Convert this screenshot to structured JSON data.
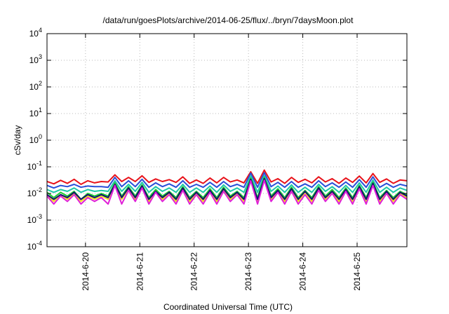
{
  "chart_data": {
    "type": "line",
    "title": "/data/run/goesPlots/archive/2014-06-25/flux/../bryn/7daysMoon.plot",
    "xlabel": "Coordinated Universal Time (UTC)",
    "ylabel": "cSv/day",
    "yscale": "log",
    "ylim": [
      0.0001,
      10000
    ],
    "y_ticks": [
      {
        "value": 0.0001,
        "base": "10",
        "exp": "-4"
      },
      {
        "value": 0.001,
        "base": "10",
        "exp": "-3"
      },
      {
        "value": 0.01,
        "base": "10",
        "exp": "-2"
      },
      {
        "value": 0.1,
        "base": "10",
        "exp": "-1"
      },
      {
        "value": 1,
        "base": "10",
        "exp": "0"
      },
      {
        "value": 10,
        "base": "10",
        "exp": "1"
      },
      {
        "value": 100,
        "base": "10",
        "exp": "2"
      },
      {
        "value": 1000,
        "base": "10",
        "exp": "3"
      },
      {
        "value": 10000,
        "base": "10",
        "exp": "4"
      }
    ],
    "xlim": [
      "2014-06-19T07:00",
      "2014-06-25T22:00"
    ],
    "x_ticks": [
      {
        "value": "2014-06-20T00:00",
        "label": "2014-6-20"
      },
      {
        "value": "2014-06-21T00:00",
        "label": "2014-6-21"
      },
      {
        "value": "2014-06-22T00:00",
        "label": "2014-6-22"
      },
      {
        "value": "2014-06-23T00:00",
        "label": "2014-6-23"
      },
      {
        "value": "2014-06-24T00:00",
        "label": "2014-6-24"
      },
      {
        "value": "2014-06-25T00:00",
        "label": "2014-6-25"
      }
    ],
    "grid": true,
    "legend": "none",
    "x": [
      "2014-06-19T07:00",
      "2014-06-19T10:00",
      "2014-06-19T13:00",
      "2014-06-19T16:00",
      "2014-06-19T19:00",
      "2014-06-19T22:00",
      "2014-06-20T01:00",
      "2014-06-20T04:00",
      "2014-06-20T07:00",
      "2014-06-20T10:00",
      "2014-06-20T13:00",
      "2014-06-20T16:00",
      "2014-06-20T19:00",
      "2014-06-20T22:00",
      "2014-06-21T01:00",
      "2014-06-21T04:00",
      "2014-06-21T07:00",
      "2014-06-21T10:00",
      "2014-06-21T13:00",
      "2014-06-21T16:00",
      "2014-06-21T19:00",
      "2014-06-21T22:00",
      "2014-06-22T01:00",
      "2014-06-22T04:00",
      "2014-06-22T07:00",
      "2014-06-22T10:00",
      "2014-06-22T13:00",
      "2014-06-22T16:00",
      "2014-06-22T19:00",
      "2014-06-22T22:00",
      "2014-06-23T01:00",
      "2014-06-23T04:00",
      "2014-06-23T07:00",
      "2014-06-23T10:00",
      "2014-06-23T13:00",
      "2014-06-23T16:00",
      "2014-06-23T19:00",
      "2014-06-23T22:00",
      "2014-06-24T01:00",
      "2014-06-24T04:00",
      "2014-06-24T07:00",
      "2014-06-24T10:00",
      "2014-06-24T13:00",
      "2014-06-24T16:00",
      "2014-06-24T19:00",
      "2014-06-24T22:00",
      "2014-06-25T01:00",
      "2014-06-25T04:00",
      "2014-06-25T07:00",
      "2014-06-25T10:00",
      "2014-06-25T13:00",
      "2014-06-25T16:00",
      "2014-06-25T19:00",
      "2014-06-25T22:00"
    ],
    "series": [
      {
        "color": "#e8121a",
        "values": [
          0.028,
          0.023,
          0.031,
          0.024,
          0.034,
          0.022,
          0.03,
          0.025,
          0.028,
          0.027,
          0.05,
          0.028,
          0.04,
          0.028,
          0.046,
          0.026,
          0.035,
          0.028,
          0.033,
          0.026,
          0.042,
          0.024,
          0.032,
          0.024,
          0.038,
          0.025,
          0.04,
          0.027,
          0.032,
          0.025,
          0.065,
          0.024,
          0.075,
          0.027,
          0.036,
          0.024,
          0.04,
          0.026,
          0.034,
          0.025,
          0.042,
          0.027,
          0.036,
          0.024,
          0.038,
          0.026,
          0.045,
          0.025,
          0.056,
          0.026,
          0.035,
          0.024,
          0.032,
          0.03
        ]
      },
      {
        "color": "#2a4fd8",
        "values": [
          0.02,
          0.016,
          0.02,
          0.018,
          0.022,
          0.017,
          0.019,
          0.018,
          0.018,
          0.017,
          0.04,
          0.018,
          0.03,
          0.018,
          0.034,
          0.017,
          0.025,
          0.018,
          0.023,
          0.017,
          0.03,
          0.017,
          0.022,
          0.017,
          0.026,
          0.017,
          0.028,
          0.018,
          0.022,
          0.017,
          0.058,
          0.017,
          0.06,
          0.018,
          0.026,
          0.017,
          0.028,
          0.017,
          0.023,
          0.017,
          0.03,
          0.018,
          0.025,
          0.017,
          0.027,
          0.017,
          0.033,
          0.017,
          0.042,
          0.017,
          0.024,
          0.017,
          0.022,
          0.019
        ]
      },
      {
        "color": "#1fc8a8",
        "values": [
          0.014,
          0.011,
          0.014,
          0.012,
          0.016,
          0.011,
          0.014,
          0.012,
          0.013,
          0.012,
          0.03,
          0.012,
          0.022,
          0.012,
          0.026,
          0.011,
          0.018,
          0.012,
          0.016,
          0.011,
          0.022,
          0.011,
          0.016,
          0.011,
          0.019,
          0.011,
          0.021,
          0.012,
          0.016,
          0.011,
          0.045,
          0.011,
          0.046,
          0.012,
          0.019,
          0.011,
          0.021,
          0.011,
          0.017,
          0.011,
          0.022,
          0.012,
          0.018,
          0.011,
          0.02,
          0.011,
          0.025,
          0.011,
          0.032,
          0.011,
          0.017,
          0.011,
          0.016,
          0.013
        ]
      },
      {
        "color": "#22cc33",
        "values": [
          0.011,
          0.007,
          0.011,
          0.008,
          0.012,
          0.006,
          0.01,
          0.008,
          0.01,
          0.008,
          0.025,
          0.008,
          0.018,
          0.008,
          0.021,
          0.007,
          0.014,
          0.008,
          0.012,
          0.007,
          0.018,
          0.007,
          0.012,
          0.007,
          0.015,
          0.007,
          0.017,
          0.008,
          0.012,
          0.007,
          0.038,
          0.007,
          0.04,
          0.008,
          0.015,
          0.007,
          0.017,
          0.007,
          0.013,
          0.007,
          0.018,
          0.008,
          0.014,
          0.007,
          0.016,
          0.007,
          0.02,
          0.007,
          0.026,
          0.007,
          0.013,
          0.007,
          0.012,
          0.009
        ]
      },
      {
        "color": "#f0e020",
        "values": [
          0.009,
          0.005,
          0.009,
          0.006,
          0.01,
          0.005,
          0.008,
          0.006,
          0.008,
          0.006,
          0.022,
          0.006,
          0.015,
          0.006,
          0.018,
          0.005,
          0.012,
          0.006,
          0.01,
          0.005,
          0.015,
          0.005,
          0.01,
          0.005,
          0.012,
          0.005,
          0.014,
          0.006,
          0.01,
          0.005,
          0.032,
          0.005,
          0.034,
          0.006,
          0.012,
          0.005,
          0.014,
          0.005,
          0.011,
          0.005,
          0.015,
          0.006,
          0.012,
          0.005,
          0.013,
          0.005,
          0.017,
          0.005,
          0.022,
          0.005,
          0.011,
          0.005,
          0.01,
          0.007
        ]
      },
      {
        "color": "#101070",
        "values": [
          0.009,
          0.006,
          0.009,
          0.007,
          0.011,
          0.006,
          0.009,
          0.007,
          0.009,
          0.007,
          0.022,
          0.007,
          0.016,
          0.007,
          0.019,
          0.006,
          0.012,
          0.007,
          0.011,
          0.006,
          0.016,
          0.006,
          0.011,
          0.006,
          0.013,
          0.006,
          0.015,
          0.007,
          0.011,
          0.006,
          0.034,
          0.006,
          0.036,
          0.007,
          0.013,
          0.006,
          0.015,
          0.006,
          0.012,
          0.006,
          0.016,
          0.007,
          0.012,
          0.006,
          0.014,
          0.006,
          0.018,
          0.006,
          0.024,
          0.006,
          0.012,
          0.006,
          0.011,
          0.008
        ]
      },
      {
        "color": "#e020d8",
        "values": [
          0.008,
          0.004,
          0.008,
          0.005,
          0.009,
          0.004,
          0.007,
          0.005,
          0.007,
          0.004,
          0.02,
          0.004,
          0.013,
          0.005,
          0.016,
          0.004,
          0.011,
          0.005,
          0.009,
          0.004,
          0.013,
          0.004,
          0.009,
          0.004,
          0.011,
          0.004,
          0.012,
          0.005,
          0.009,
          0.004,
          0.03,
          0.004,
          0.031,
          0.005,
          0.011,
          0.004,
          0.012,
          0.004,
          0.009,
          0.004,
          0.013,
          0.005,
          0.01,
          0.004,
          0.012,
          0.004,
          0.015,
          0.004,
          0.02,
          0.004,
          0.01,
          0.004,
          0.009,
          0.006
        ]
      }
    ]
  }
}
